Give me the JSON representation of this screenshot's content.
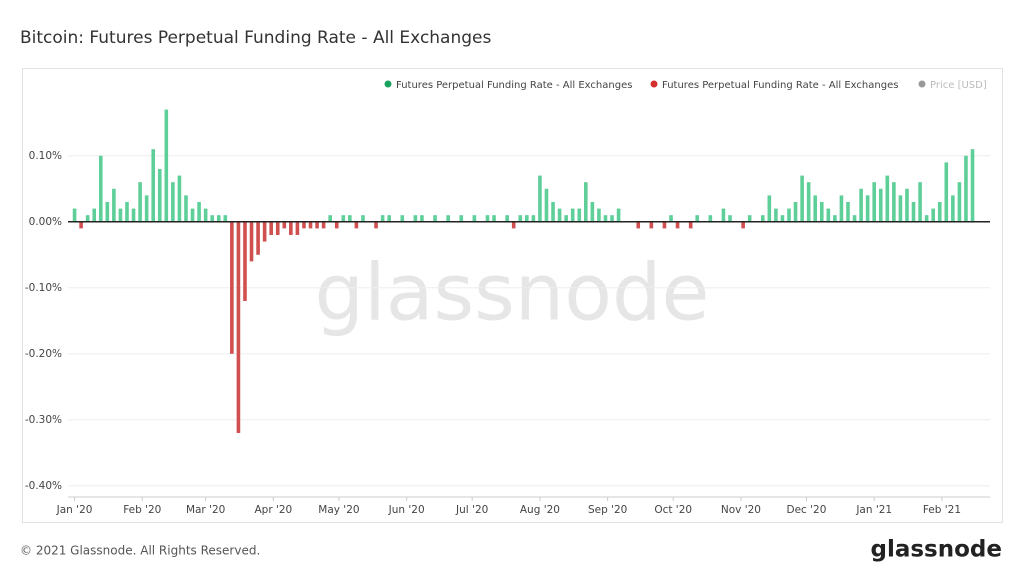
{
  "chart_data": {
    "type": "bar",
    "title": "Bitcoin: Futures Perpetual Funding Rate - All Exchanges",
    "watermark": "glassnode",
    "footer": "© 2021 Glassnode. All Rights Reserved.",
    "logo": "glassnode",
    "legend": [
      {
        "name": "Futures Perpetual Funding Rate - All Exchanges",
        "color": "#1aa260"
      },
      {
        "name": "Futures Perpetual Funding Rate - All Exchanges",
        "color": "#d32f2f"
      },
      {
        "name": "Price [USD]",
        "color": "#999999"
      }
    ],
    "color_positive": "#5fcf9a",
    "color_negative": "#d05050",
    "x": [
      0,
      3,
      6,
      9,
      12,
      15,
      18,
      21,
      24,
      27,
      30,
      33,
      36,
      39,
      42,
      45,
      48,
      51,
      54,
      57,
      60,
      63,
      66,
      69,
      72,
      75,
      78,
      81,
      84,
      87,
      90,
      93,
      96,
      99,
      102,
      105,
      108,
      111,
      114,
      117,
      120,
      123,
      126,
      129,
      132,
      135,
      138,
      141,
      144,
      147,
      150,
      153,
      156,
      159,
      162,
      165,
      168,
      171,
      174,
      177,
      180,
      183,
      186,
      189,
      192,
      195,
      198,
      201,
      204,
      207,
      210,
      213,
      216,
      219,
      222,
      225,
      228,
      231,
      234,
      237,
      240,
      243,
      246,
      249,
      252,
      255,
      258,
      261,
      264,
      267,
      270,
      273,
      276,
      279,
      282,
      285,
      288,
      291,
      294,
      297,
      300,
      303,
      306,
      309,
      312,
      315,
      318,
      321,
      324,
      327,
      330,
      333,
      336,
      339,
      342,
      345,
      348,
      351,
      354,
      357,
      360,
      363,
      366,
      369,
      372,
      375,
      378,
      381,
      384,
      387,
      390,
      393,
      396,
      399,
      402,
      405,
      408,
      411
    ],
    "values": [
      0.02,
      -0.01,
      0.01,
      0.02,
      0.1,
      0.03,
      0.05,
      0.02,
      0.03,
      0.02,
      0.06,
      0.04,
      0.11,
      0.08,
      0.17,
      0.06,
      0.07,
      0.04,
      0.02,
      0.03,
      0.02,
      0.01,
      0.01,
      0.01,
      -0.2,
      -0.32,
      -0.12,
      -0.06,
      -0.05,
      -0.03,
      -0.02,
      -0.02,
      -0.01,
      -0.02,
      -0.02,
      -0.01,
      -0.01,
      -0.01,
      -0.01,
      0.01,
      -0.01,
      0.01,
      0.01,
      -0.01,
      0.01,
      0.0,
      -0.01,
      0.01,
      0.01,
      0.0,
      0.01,
      0.0,
      0.01,
      0.01,
      0.0,
      0.01,
      0.0,
      0.01,
      0.0,
      0.01,
      0.0,
      0.01,
      0.0,
      0.01,
      0.01,
      0.0,
      0.01,
      -0.01,
      0.01,
      0.01,
      0.01,
      0.07,
      0.05,
      0.03,
      0.02,
      0.01,
      0.02,
      0.02,
      0.06,
      0.03,
      0.02,
      0.01,
      0.01,
      0.02,
      0.0,
      0.0,
      -0.01,
      0.0,
      -0.01,
      0.0,
      -0.01,
      0.01,
      -0.01,
      0.0,
      -0.01,
      0.01,
      0.0,
      0.01,
      0.0,
      0.02,
      0.01,
      0.0,
      -0.01,
      0.01,
      0.0,
      0.01,
      0.04,
      0.02,
      0.01,
      0.02,
      0.03,
      0.07,
      0.06,
      0.04,
      0.03,
      0.02,
      0.01,
      0.04,
      0.03,
      0.01,
      0.05,
      0.04,
      0.06,
      0.05,
      0.07,
      0.06,
      0.04,
      0.05,
      0.03,
      0.06,
      0.01,
      0.02,
      0.03,
      0.09,
      0.04,
      0.06,
      0.1,
      0.11
    ],
    "xlim": [
      -3,
      419
    ],
    "xticks": [
      {
        "value": 0,
        "label": "Jan '20"
      },
      {
        "value": 31,
        "label": "Feb '20"
      },
      {
        "value": 60,
        "label": "Mar '20"
      },
      {
        "value": 91,
        "label": "Apr '20"
      },
      {
        "value": 121,
        "label": "May '20"
      },
      {
        "value": 152,
        "label": "Jun '20"
      },
      {
        "value": 182,
        "label": "Jul '20"
      },
      {
        "value": 213,
        "label": "Aug '20"
      },
      {
        "value": 244,
        "label": "Sep '20"
      },
      {
        "value": 274,
        "label": "Oct '20"
      },
      {
        "value": 305,
        "label": "Nov '20"
      },
      {
        "value": 335,
        "label": "Dec '20"
      },
      {
        "value": 366,
        "label": "Jan '21"
      },
      {
        "value": 397,
        "label": "Feb '21"
      }
    ],
    "ylim": [
      -0.417,
      0.233
    ],
    "yticks": [
      {
        "value": -0.4,
        "label": "-0.40%"
      },
      {
        "value": -0.3,
        "label": "-0.30%"
      },
      {
        "value": -0.2,
        "label": "-0.20%"
      },
      {
        "value": -0.1,
        "label": "-0.10%"
      },
      {
        "value": 0,
        "label": "0.00%"
      },
      {
        "value": 0.1,
        "label": "0.10%"
      }
    ],
    "grid": true
  }
}
